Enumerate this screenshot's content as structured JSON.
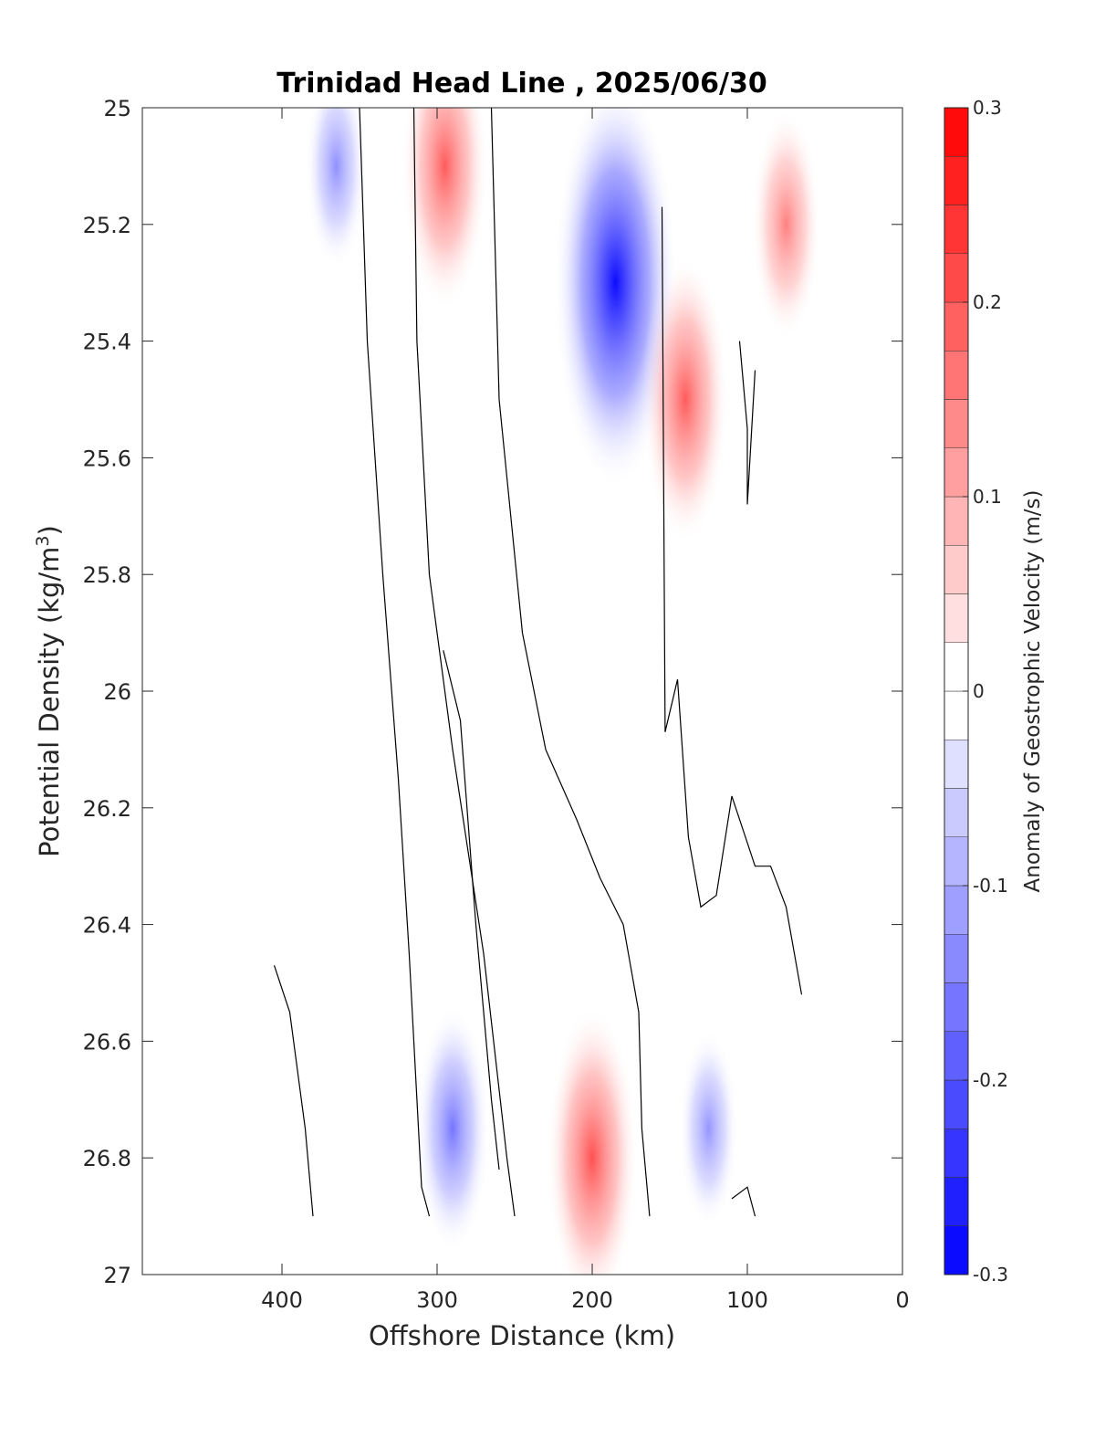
{
  "chart_data": {
    "type": "contour",
    "title": "Trinidad Head Line , 2025/06/30",
    "xlabel": "Offshore Distance (km)",
    "ylabel_main": "Potential Density (kg/m",
    "ylabel_sup": "3",
    "ylabel_tail": ")",
    "x_reversed": true,
    "y_reversed": true,
    "xlim": [
      0,
      490
    ],
    "ylim": [
      25,
      27
    ],
    "x_ticks": [
      "400",
      "300",
      "200",
      "100",
      "0"
    ],
    "x_tick_values": [
      400,
      300,
      200,
      100,
      0
    ],
    "y_ticks": [
      "25",
      "25.2",
      "25.4",
      "25.6",
      "25.8",
      "26",
      "26.2",
      "26.4",
      "26.6",
      "26.8",
      "27"
    ],
    "y_tick_values": [
      25,
      25.2,
      25.4,
      25.6,
      25.8,
      26,
      26.2,
      26.4,
      26.6,
      26.8,
      27
    ],
    "colorbar": {
      "label": "Anomaly of Geostrophic Velocity (m/s)",
      "range": [
        -0.3,
        0.3
      ],
      "step": 0.025,
      "ticks": [
        "-0.3",
        "-0.2",
        "-0.1",
        "0",
        "0.1",
        "0.2",
        "0.3"
      ],
      "tick_values": [
        -0.3,
        -0.2,
        -0.1,
        0,
        0.1,
        0.2,
        0.3
      ],
      "negative_color": "#0000ff",
      "positive_color": "#ff0000",
      "mid_color": "#ffffff"
    },
    "velocity_features": [
      {
        "name": "negative-core-upper-central",
        "x": 185,
        "y": 25.3,
        "value": -0.3
      },
      {
        "name": "positive-core-upper-offshore",
        "x": 295,
        "y": 25.1,
        "value": 0.15
      },
      {
        "name": "negative-lobe-offshore",
        "x": 365,
        "y": 25.1,
        "value": -0.05
      },
      {
        "name": "positive-lobe-inshore-upper",
        "x": 75,
        "y": 25.2,
        "value": 0.08
      },
      {
        "name": "positive-lobe-inshore-mid",
        "x": 140,
        "y": 25.5,
        "value": 0.15
      },
      {
        "name": "positive-lobe-lower-central",
        "x": 200,
        "y": 26.8,
        "value": 0.17
      },
      {
        "name": "negative-lobe-lower",
        "x": 290,
        "y": 26.75,
        "value": -0.1
      },
      {
        "name": "negative-lobe-lower-inshore",
        "x": 125,
        "y": 26.75,
        "value": -0.04
      }
    ],
    "zero_contours": [
      {
        "points": [
          [
            315,
            25.0
          ],
          [
            313,
            25.4
          ],
          [
            305,
            25.8
          ],
          [
            290,
            26.1
          ],
          [
            270,
            26.45
          ],
          [
            255,
            26.8
          ],
          [
            250,
            26.9
          ]
        ]
      },
      {
        "points": [
          [
            350,
            25.0
          ],
          [
            345,
            25.4
          ],
          [
            335,
            25.8
          ],
          [
            325,
            26.15
          ],
          [
            318,
            26.45
          ],
          [
            310,
            26.85
          ],
          [
            305,
            26.9
          ]
        ]
      },
      {
        "points": [
          [
            405,
            26.47
          ],
          [
            395,
            26.55
          ],
          [
            385,
            26.75
          ],
          [
            380,
            26.9
          ]
        ]
      },
      {
        "points": [
          [
            265,
            25.0
          ],
          [
            260,
            25.5
          ],
          [
            245,
            25.9
          ],
          [
            230,
            26.1
          ],
          [
            210,
            26.22
          ],
          [
            195,
            26.32
          ],
          [
            180,
            26.4
          ],
          [
            170,
            26.55
          ],
          [
            168,
            26.75
          ],
          [
            163,
            26.9
          ]
        ]
      },
      {
        "points": [
          [
            296,
            25.93
          ],
          [
            285,
            26.05
          ],
          [
            275,
            26.4
          ],
          [
            265,
            26.7
          ],
          [
            260,
            26.82
          ]
        ]
      },
      {
        "points": [
          [
            155,
            25.17
          ],
          [
            153,
            26.07
          ],
          [
            145,
            25.98
          ],
          [
            138,
            26.25
          ],
          [
            130,
            26.37
          ],
          [
            120,
            26.35
          ],
          [
            110,
            26.18
          ],
          [
            95,
            26.3
          ],
          [
            85,
            26.3
          ],
          [
            75,
            26.37
          ],
          [
            65,
            26.52
          ]
        ]
      },
      {
        "points": [
          [
            105,
            25.4
          ],
          [
            100,
            25.55
          ],
          [
            100,
            25.68
          ],
          [
            95,
            25.45
          ]
        ]
      },
      {
        "points": [
          [
            110,
            26.87
          ],
          [
            100,
            26.85
          ],
          [
            95,
            26.9
          ]
        ]
      }
    ]
  }
}
